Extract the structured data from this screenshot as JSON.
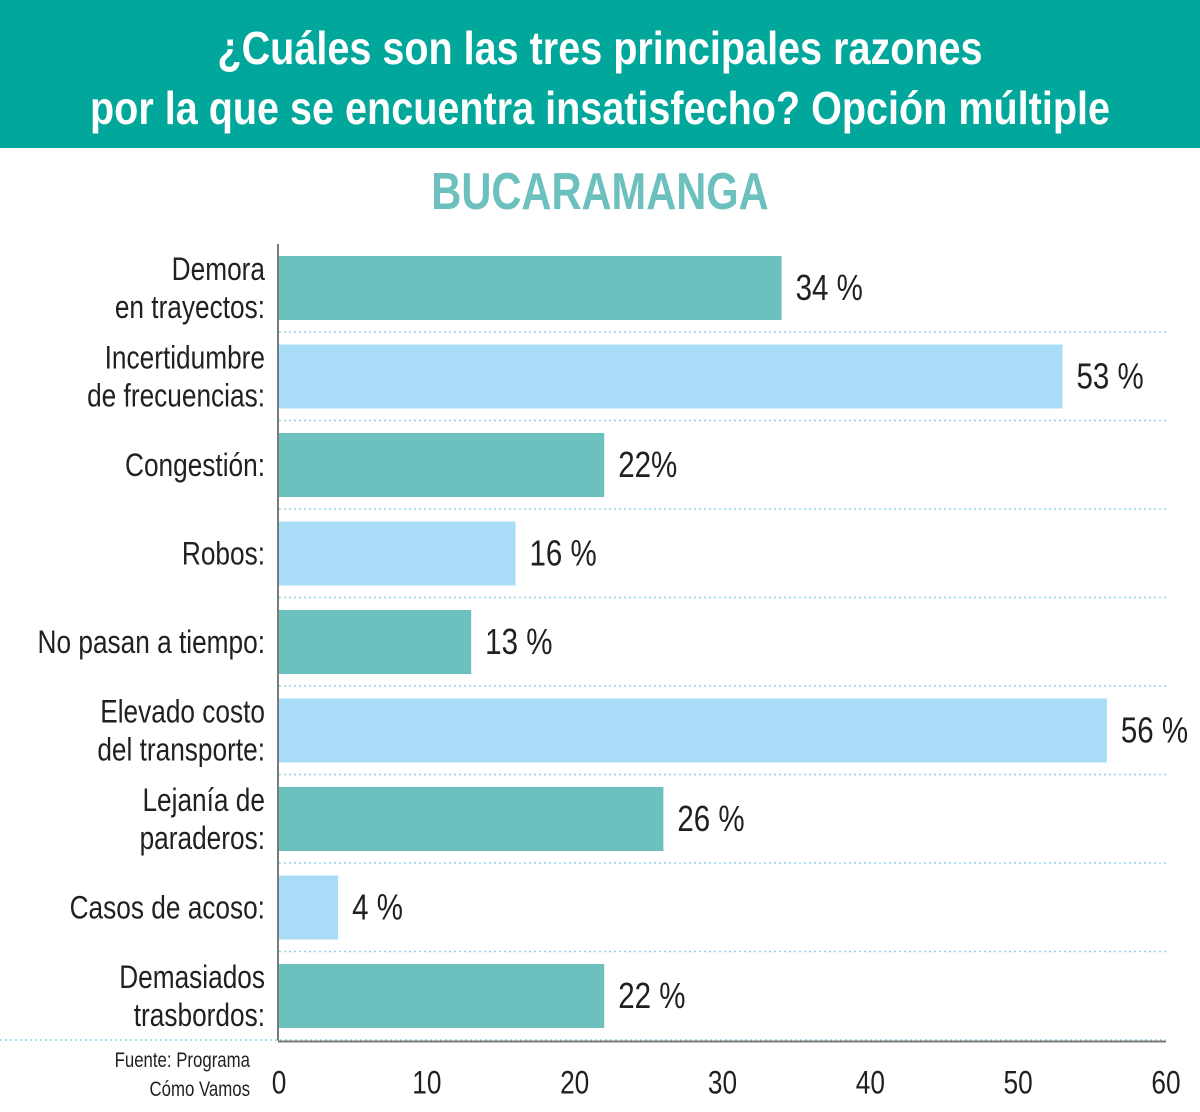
{
  "header": {
    "title_line1": "¿Cuáles son las tres principales razones",
    "title_line2": "por la que se encuentra insatisfecho? Opción múltiple"
  },
  "subtitle": "BUCARAMANGA",
  "source": {
    "line1": "Fuente: Programa",
    "line2": "Cómo Vamos"
  },
  "colors": {
    "header_bg": "#00a79a",
    "subtitle": "#6cc0be",
    "bar_teal": "#6cc0be",
    "bar_blue": "#a8dcf7",
    "gridline": "#8fd3e8"
  },
  "chart_data": {
    "type": "bar",
    "orientation": "horizontal",
    "title": "¿Cuáles son las tres principales razones por la que se encuentra insatisfecho? Opción múltiple",
    "subtitle": "BUCARAMANGA",
    "categories": [
      [
        "Demora",
        "en trayectos:"
      ],
      [
        "Incertidumbre",
        "de frecuencias:"
      ],
      [
        "Congestión:"
      ],
      [
        "Robos:"
      ],
      [
        "No pasan a tiempo:"
      ],
      [
        "Elevado costo",
        "del transporte:"
      ],
      [
        "Lejanía de",
        "paraderos:"
      ],
      [
        "Casos de acoso:"
      ],
      [
        "Demasiados",
        "trasbordos:"
      ]
    ],
    "values": [
      34,
      53,
      22,
      16,
      13,
      56,
      26,
      4,
      22
    ],
    "value_labels": [
      "34 %",
      "53 %",
      "22%",
      "16 %",
      "13 %",
      "56 %",
      "26 %",
      "4 %",
      "22 %"
    ],
    "bar_colors": [
      "#6cc0be",
      "#a8dcf7",
      "#6cc0be",
      "#a8dcf7",
      "#6cc0be",
      "#a8dcf7",
      "#6cc0be",
      "#a8dcf7",
      "#6cc0be"
    ],
    "xlim": [
      0,
      60
    ],
    "xticks": [
      0,
      10,
      20,
      30,
      40,
      50,
      60
    ],
    "xtick_labels": [
      "0",
      "10",
      "20",
      "30",
      "40",
      "50",
      "60"
    ],
    "grid": "dotted horizontal separators"
  }
}
